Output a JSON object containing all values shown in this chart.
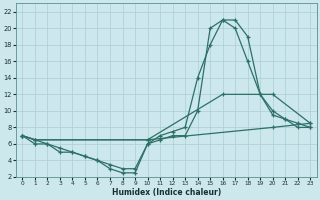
{
  "xlabel": "Humidex (Indice chaleur)",
  "background_color": "#cce8ec",
  "grid_color": "#aacdd4",
  "line_color": "#2d7068",
  "xlim": [
    -0.5,
    23.5
  ],
  "ylim": [
    2,
    23
  ],
  "xticks": [
    0,
    1,
    2,
    3,
    4,
    5,
    6,
    7,
    8,
    9,
    10,
    11,
    12,
    13,
    14,
    15,
    16,
    17,
    18,
    19,
    20,
    21,
    22,
    23
  ],
  "yticks": [
    2,
    4,
    6,
    8,
    10,
    12,
    14,
    16,
    18,
    20,
    22
  ],
  "series": [
    {
      "x": [
        0,
        1,
        2,
        3,
        4,
        5,
        6,
        7,
        8,
        9,
        10,
        11,
        12,
        13,
        14,
        15,
        16,
        17,
        18,
        19,
        20,
        21,
        22,
        23
      ],
      "y": [
        7,
        6,
        6,
        5,
        5,
        4.5,
        4,
        3,
        2.5,
        2.5,
        6,
        6.5,
        7,
        7,
        10,
        20,
        21,
        20,
        16,
        12,
        9.5,
        9,
        8,
        8
      ]
    },
    {
      "x": [
        0,
        1,
        2,
        3,
        4,
        5,
        6,
        7,
        8,
        9,
        10,
        11,
        12,
        13,
        14,
        15,
        16,
        17,
        18,
        19,
        20,
        21,
        22,
        23
      ],
      "y": [
        7,
        6.5,
        6,
        5.5,
        5,
        4.5,
        4,
        3.5,
        3,
        3,
        6,
        7,
        7.5,
        8,
        14,
        18,
        21,
        21,
        19,
        12,
        10,
        9,
        8.5,
        8
      ]
    },
    {
      "x": [
        0,
        1,
        10,
        16,
        20,
        23
      ],
      "y": [
        7,
        6.5,
        6.5,
        12,
        12,
        8.5
      ]
    },
    {
      "x": [
        0,
        1,
        10,
        20,
        23
      ],
      "y": [
        7,
        6.5,
        6.5,
        8,
        8.5
      ]
    }
  ]
}
